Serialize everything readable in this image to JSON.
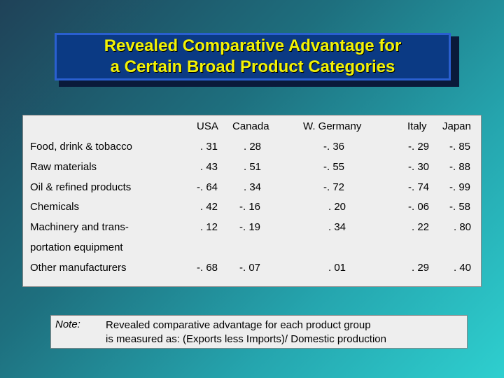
{
  "title": "Revealed Comparative Advantage for\na Certain Broad Product Categories",
  "table": {
    "columns": [
      "USA",
      "Canada",
      "W. Germany",
      "Italy",
      "Japan"
    ],
    "rows": [
      {
        "label": "Food, drink & tobacco",
        "values": [
          ". 31",
          ". 28",
          "-. 36",
          "-. 29",
          "-. 85"
        ]
      },
      {
        "label": "Raw materials",
        "values": [
          ". 43",
          ". 51",
          "-. 55",
          "-. 30",
          "-. 88"
        ]
      },
      {
        "label": "Oil & refined products",
        "values": [
          "-. 64",
          ". 34",
          "-. 72",
          "-. 74",
          "-. 99"
        ]
      },
      {
        "label": "Chemicals",
        "values": [
          ". 42",
          "-. 16",
          ". 20",
          "-. 06",
          "-. 58"
        ]
      },
      {
        "label": "Machinery and trans-",
        "label_cont": "portation equipment",
        "values": [
          ". 12",
          "-. 19",
          ". 34",
          ". 22",
          ". 80"
        ]
      },
      {
        "label": "Other manufacturers",
        "values": [
          "-. 68",
          "-. 07",
          ". 01",
          ". 29",
          ". 40"
        ]
      }
    ]
  },
  "note": {
    "label": "Note:",
    "text": "Revealed comparative advantage for each product group\nis measured as: (Exports less Imports)/ Domestic production"
  }
}
